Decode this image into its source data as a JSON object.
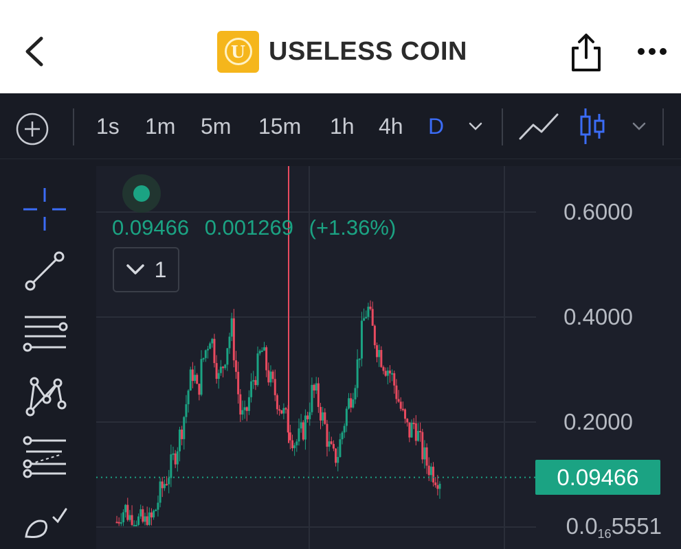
{
  "header": {
    "title": "USELESS COIN",
    "logo_letter": "U",
    "back_icon": "chevron-left-icon",
    "share_icon": "share-icon",
    "more_icon": "more-horizontal-icon"
  },
  "toolbar": {
    "add_icon": "plus-circle-icon",
    "intervals": [
      "1s",
      "1m",
      "5m",
      "15m",
      "1h",
      "4h",
      "D"
    ],
    "active_interval": "D",
    "chart_types": [
      "line-chart-icon",
      "candlestick-icon"
    ],
    "active_chart_type": "candlestick-icon"
  },
  "tools": [
    "crosshair-icon",
    "trendline-icon",
    "horizontal-lines-icon",
    "pattern-icon",
    "fib-icon",
    "brush-icon"
  ],
  "legend": {
    "price": "0.09466",
    "change": "0.001269",
    "change_pct": "(+1.36%)",
    "collapse_count": "1"
  },
  "colors": {
    "up": "#1ba383",
    "down": "#e84a5f",
    "accent": "#3b6cf6",
    "background": "#1c1f2a"
  },
  "axis": {
    "y_labels": [
      "0.6000",
      "0.4000",
      "0.2000"
    ],
    "y_bottom_prefix": "0.0",
    "y_bottom_sub": "16",
    "y_bottom_suffix": "5551",
    "current_price_label": "0.09466"
  },
  "chart_data": {
    "type": "candlestick",
    "ylim": [
      0,
      0.66
    ],
    "last_price": 0.09466,
    "close_path": [
      0.01,
      0.03,
      0.035,
      0.02,
      0.015,
      0.012,
      0.008,
      0.006,
      0.01,
      0.03,
      0.06,
      0.08,
      0.1,
      0.12,
      0.15,
      0.18,
      0.22,
      0.27,
      0.3,
      0.25,
      0.31,
      0.34,
      0.37,
      0.33,
      0.28,
      0.31,
      0.35,
      0.38,
      0.3,
      0.22,
      0.2,
      0.24,
      0.28,
      0.3,
      0.34,
      0.31,
      0.28,
      0.26,
      0.24,
      0.22,
      0.2,
      0.18,
      0.16,
      0.17,
      0.19,
      0.22,
      0.26,
      0.25,
      0.22,
      0.19,
      0.15,
      0.13,
      0.14,
      0.18,
      0.22,
      0.25,
      0.28,
      0.33,
      0.39,
      0.42,
      0.38,
      0.35,
      0.33,
      0.31,
      0.3,
      0.28,
      0.25,
      0.22,
      0.19,
      0.18,
      0.2,
      0.17,
      0.14,
      0.12,
      0.11,
      0.1,
      0.095
    ],
    "spike": {
      "index": 27,
      "high": 0.66
    }
  }
}
